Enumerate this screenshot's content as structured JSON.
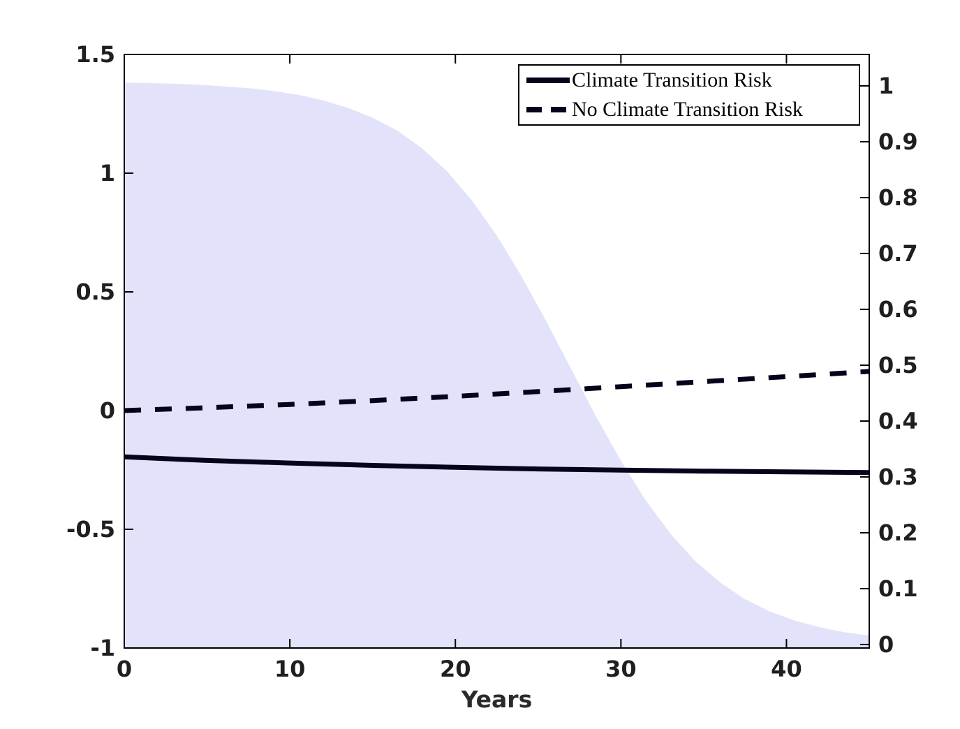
{
  "figure": {
    "background": "#ffffff"
  },
  "legend": {
    "items": [
      {
        "label": "Climate Transition Risk",
        "style": "solid"
      },
      {
        "label": "No Climate Transition Risk",
        "style": "dashed"
      }
    ]
  },
  "chart_data": {
    "type": "line",
    "title": "",
    "xlabel": "Years",
    "xlim": [
      0,
      45
    ],
    "x_ticks": {
      "values": [
        0,
        10,
        20,
        30,
        40
      ],
      "labels": [
        "0",
        "10",
        "20",
        "30",
        "40"
      ]
    },
    "left_axis": {
      "lim": [
        -1,
        1.5
      ],
      "tick_values": [
        1.5,
        1,
        0.5,
        0,
        -0.5,
        -1
      ],
      "tick_labels": [
        "1.5",
        "1",
        "0.5",
        "0",
        "-0.5",
        "-1"
      ]
    },
    "right_axis": {
      "lim": [
        -0.00625,
        1.05625
      ],
      "tick_values": [
        1,
        0.9,
        0.8,
        0.7,
        0.6,
        0.5,
        0.4,
        0.3,
        0.2,
        0.1,
        0
      ],
      "tick_labels": [
        "1",
        "0.9",
        "0.8",
        "0.7",
        "0.6",
        "0.5",
        "0.4",
        "0.3",
        "0.2",
        "0.1",
        "0"
      ]
    },
    "grid": false,
    "legend_position": "top-right",
    "series": [
      {
        "name": "Climate Transition Risk",
        "axis": "left",
        "style": "solid",
        "x": [
          0,
          5,
          10,
          15,
          20,
          25,
          30,
          35,
          40,
          45
        ],
        "y": [
          -0.195,
          -0.21,
          -0.221,
          -0.231,
          -0.239,
          -0.246,
          -0.251,
          -0.255,
          -0.258,
          -0.261
        ]
      },
      {
        "name": "No Climate Transition Risk",
        "axis": "left",
        "style": "dashed",
        "x": [
          0,
          5,
          10,
          15,
          20,
          25,
          30,
          35,
          40,
          45
        ],
        "y": [
          0.0,
          0.012,
          0.026,
          0.042,
          0.06,
          0.08,
          0.101,
          0.122,
          0.143,
          0.165
        ]
      },
      {
        "name": "shaded-probability-region",
        "axis": "right",
        "style": "area",
        "x": [
          0,
          1.5,
          3,
          4.5,
          6,
          7.5,
          9,
          10.5,
          12,
          13.5,
          15,
          16.5,
          18,
          19.5,
          21,
          22.5,
          24,
          25.5,
          27,
          28.5,
          30,
          31.5,
          33,
          34.5,
          36,
          37.5,
          39,
          40.5,
          42,
          43.5,
          45
        ],
        "y": [
          1.006,
          1.005,
          1.004,
          1.002,
          0.999,
          0.996,
          0.991,
          0.984,
          0.974,
          0.961,
          0.943,
          0.92,
          0.888,
          0.847,
          0.795,
          0.732,
          0.659,
          0.578,
          0.493,
          0.408,
          0.329,
          0.258,
          0.198,
          0.149,
          0.111,
          0.081,
          0.059,
          0.043,
          0.031,
          0.022,
          0.016
        ]
      }
    ],
    "colors": {
      "line": "#04041c",
      "fill": "#e2e2fa",
      "axis": "#000000",
      "tick_label": "#1f1f1f"
    }
  }
}
